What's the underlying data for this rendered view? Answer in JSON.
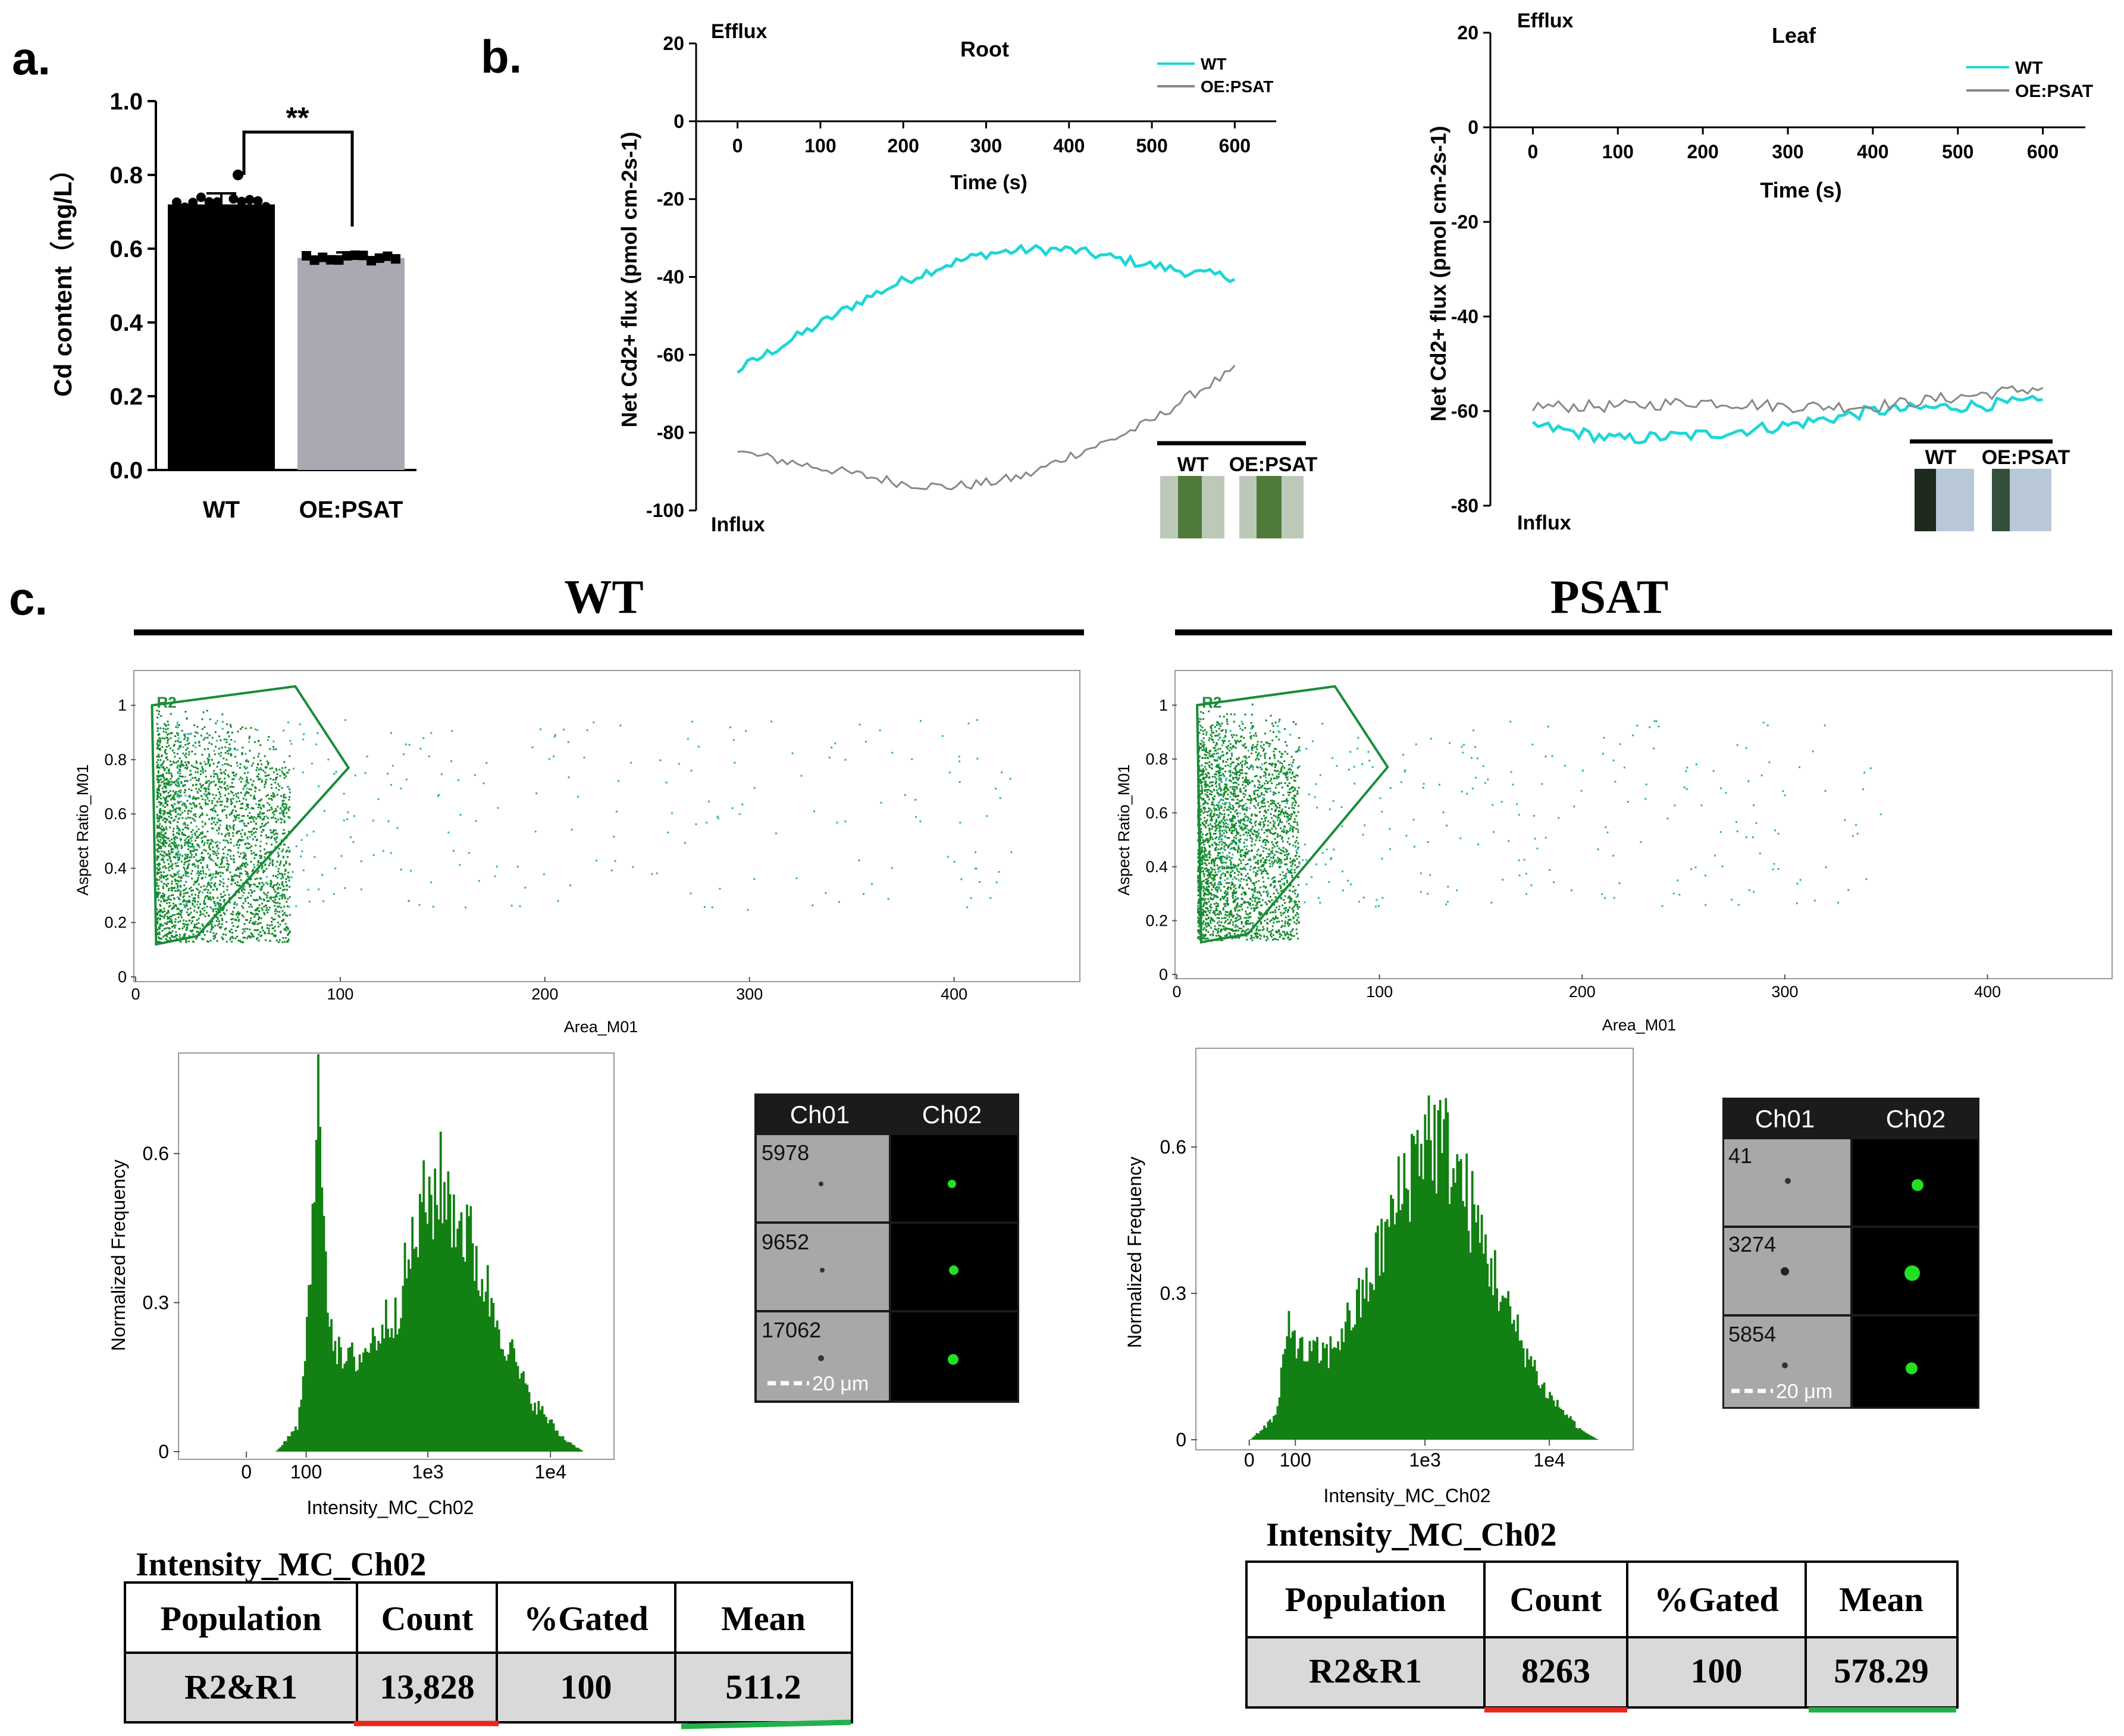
{
  "panel_labels": {
    "a": "a.",
    "b": "b.",
    "c": "c."
  },
  "chart_data": [
    {
      "id": "a",
      "type": "bar",
      "categories": [
        "WT",
        "OE:PSAT"
      ],
      "values": [
        0.72,
        0.575
      ],
      "errors": [
        0.03,
        0.015
      ],
      "ylabel": "Cd content（mg/L）",
      "ylim": [
        0,
        1.0
      ],
      "yticks": [
        "0.0",
        "0.2",
        "0.4",
        "0.6",
        "0.8",
        "1.0"
      ],
      "significance": "**",
      "bar_colors": [
        "#000000",
        "#a9a9b1"
      ]
    },
    {
      "id": "b-root",
      "type": "line",
      "title": "Root",
      "xlabel": "Time (s)",
      "ylabel": "Net Cd2+ flux (pmol cm-2s-1)",
      "xlim": [
        -50,
        650
      ],
      "ylim": [
        -100,
        20
      ],
      "xticks": [
        "0",
        "100",
        "200",
        "300",
        "400",
        "500",
        "600"
      ],
      "yticks": [
        "20",
        "0",
        "-20",
        "-40",
        "-60",
        "-80",
        "-100"
      ],
      "top_note": "Efflux",
      "bottom_note": "Influx",
      "series": [
        {
          "name": "WT",
          "color": "#1fd6d6",
          "knots": [
            [
              0,
              -64
            ],
            [
              50,
              -58
            ],
            [
              100,
              -52
            ],
            [
              150,
              -46
            ],
            [
              200,
              -41
            ],
            [
              250,
              -37
            ],
            [
              300,
              -34
            ],
            [
              350,
              -33
            ],
            [
              400,
              -33
            ],
            [
              450,
              -35
            ],
            [
              500,
              -37
            ],
            [
              550,
              -39
            ],
            [
              600,
              -40
            ]
          ]
        },
        {
          "name": "OE:PSAT",
          "color": "#888888",
          "knots": [
            [
              0,
              -85
            ],
            [
              50,
              -87
            ],
            [
              100,
              -89
            ],
            [
              150,
              -91
            ],
            [
              200,
              -93
            ],
            [
              250,
              -94
            ],
            [
              300,
              -93
            ],
            [
              350,
              -91
            ],
            [
              400,
              -86
            ],
            [
              450,
              -82
            ],
            [
              500,
              -77
            ],
            [
              550,
              -70
            ],
            [
              600,
              -64
            ]
          ]
        }
      ],
      "inset": {
        "labels": [
          "WT",
          "OE:PSAT"
        ]
      }
    },
    {
      "id": "b-leaf",
      "type": "line",
      "title": "Leaf",
      "xlabel": "Time (s)",
      "ylabel": "Net Cd2+ flux (pmol cm-2s-1)",
      "xlim": [
        -50,
        650
      ],
      "ylim": [
        -80,
        20
      ],
      "xticks": [
        "0",
        "100",
        "200",
        "300",
        "400",
        "500",
        "600"
      ],
      "yticks": [
        "20",
        "0",
        "-20",
        "-40",
        "-60",
        "-80"
      ],
      "top_note": "Efflux",
      "bottom_note": "Influx",
      "series": [
        {
          "name": "WT",
          "color": "#1fd6d6",
          "knots": [
            [
              0,
              -63
            ],
            [
              100,
              -66
            ],
            [
              200,
              -65
            ],
            [
              300,
              -63
            ],
            [
              400,
              -60
            ],
            [
              500,
              -59
            ],
            [
              600,
              -58
            ]
          ]
        },
        {
          "name": "OE:PSAT",
          "color": "#888888",
          "knots": [
            [
              0,
              -59
            ],
            [
              100,
              -59
            ],
            [
              200,
              -58
            ],
            [
              300,
              -59
            ],
            [
              400,
              -59
            ],
            [
              500,
              -57
            ],
            [
              600,
              -55
            ]
          ]
        }
      ],
      "inset": {
        "labels": [
          "WT",
          "OE:PSAT"
        ]
      }
    },
    {
      "id": "c-wt-scatter",
      "type": "scatter",
      "title": "WT",
      "xlabel": "Area_M01",
      "ylabel": "Aspect Ratio_M01",
      "xlim": [
        0,
        460
      ],
      "ylim": [
        0,
        1.1
      ],
      "xticks": [
        "0",
        "100",
        "200",
        "300",
        "400"
      ],
      "yticks": [
        "0",
        "0.2",
        "0.4",
        "0.6",
        "0.8",
        "1"
      ],
      "gate": {
        "name": "R2",
        "polygon": [
          [
            10,
            0.12
          ],
          [
            8,
            1.0
          ],
          [
            78,
            1.07
          ],
          [
            104,
            0.77
          ],
          [
            30,
            0.15
          ]
        ]
      },
      "extent": {
        "xmax": 430,
        "core_xmax": 75
      }
    },
    {
      "id": "c-psat-scatter",
      "type": "scatter",
      "title": "PSAT",
      "xlabel": "Area_M01",
      "ylabel": "Aspect Ratio_M01",
      "xlim": [
        0,
        460
      ],
      "ylim": [
        0,
        1.1
      ],
      "xticks": [
        "0",
        "100",
        "200",
        "300",
        "400"
      ],
      "yticks": [
        "0",
        "0.2",
        "0.4",
        "0.6",
        "0.8",
        "1"
      ],
      "gate": {
        "name": "R2",
        "polygon": [
          [
            12,
            0.12
          ],
          [
            10,
            1.0
          ],
          [
            78,
            1.07
          ],
          [
            104,
            0.77
          ],
          [
            35,
            0.15
          ]
        ]
      },
      "extent": {
        "xmax": 350,
        "core_xmax": 60
      }
    },
    {
      "id": "c-wt-hist",
      "type": "bar",
      "xlabel": "Intensity_MC_Ch02",
      "ylabel": "Normalized Frequency",
      "ylim": [
        0,
        0.8
      ],
      "xticks": [
        "0",
        "100",
        "1e3",
        "1e4"
      ],
      "yticks": [
        "0",
        "0.3",
        "0.6"
      ],
      "color": "#128012",
      "profile": [
        [
          0,
          0.0
        ],
        [
          0.22,
          0.0
        ],
        [
          0.27,
          0.05
        ],
        [
          0.3,
          0.35
        ],
        [
          0.32,
          0.8
        ],
        [
          0.34,
          0.3
        ],
        [
          0.37,
          0.18
        ],
        [
          0.42,
          0.2
        ],
        [
          0.5,
          0.3
        ],
        [
          0.56,
          0.5
        ],
        [
          0.6,
          0.55
        ],
        [
          0.66,
          0.45
        ],
        [
          0.72,
          0.3
        ],
        [
          0.8,
          0.12
        ],
        [
          0.88,
          0.03
        ],
        [
          0.93,
          0.0
        ],
        [
          1,
          0.0
        ]
      ]
    },
    {
      "id": "c-psat-hist",
      "type": "bar",
      "xlabel": "Intensity_MC_Ch02",
      "ylabel": "Normalized Frequency",
      "ylim": [
        0,
        0.8
      ],
      "xticks": [
        "0",
        "100",
        "1e3",
        "1e4"
      ],
      "yticks": [
        "0",
        "0.3",
        "0.6"
      ],
      "color": "#128012",
      "profile": [
        [
          0,
          0.0
        ],
        [
          0.12,
          0.0
        ],
        [
          0.18,
          0.05
        ],
        [
          0.21,
          0.25
        ],
        [
          0.24,
          0.18
        ],
        [
          0.3,
          0.18
        ],
        [
          0.38,
          0.3
        ],
        [
          0.46,
          0.5
        ],
        [
          0.52,
          0.65
        ],
        [
          0.58,
          0.6
        ],
        [
          0.64,
          0.45
        ],
        [
          0.72,
          0.25
        ],
        [
          0.8,
          0.1
        ],
        [
          0.88,
          0.02
        ],
        [
          0.92,
          0.0
        ],
        [
          1,
          0.0
        ]
      ]
    }
  ],
  "gallery_wt": {
    "headers": [
      "Ch01",
      "Ch02"
    ],
    "ids": [
      "5978",
      "9652",
      "17062"
    ],
    "scale": "20 μm"
  },
  "gallery_psat": {
    "headers": [
      "Ch01",
      "Ch02"
    ],
    "ids": [
      "41",
      "3274",
      "5854"
    ],
    "scale": "20 μm"
  },
  "table_wt": {
    "title": "Intensity_MC_Ch02",
    "headers": [
      "Population",
      "Count",
      "%Gated",
      "Mean"
    ],
    "row": [
      "R2&R1",
      "13,828",
      "100",
      "511.2"
    ]
  },
  "table_psat": {
    "title": "Intensity_MC_Ch02",
    "headers": [
      "Population",
      "Count",
      "%Gated",
      "Mean"
    ],
    "row": [
      "R2&R1",
      "8263",
      "100",
      "578.29"
    ]
  },
  "colors": {
    "wt_line": "#1fd6d6",
    "psat_line": "#888888",
    "hist_green": "#128012",
    "gate_green": "#1a8c3a",
    "underline_count": "#e8261c",
    "underline_mean": "#22b04a"
  }
}
